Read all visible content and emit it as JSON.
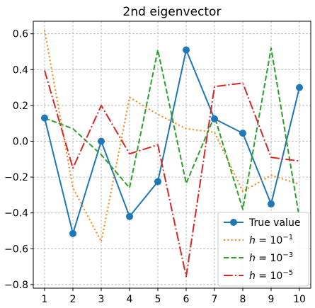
{
  "chart_data": {
    "type": "line",
    "title": "2nd eigenvector",
    "xlabel": "",
    "ylabel": "",
    "x": [
      1,
      2,
      3,
      4,
      5,
      6,
      7,
      8,
      9,
      10
    ],
    "xlim": [
      0.6,
      10.4
    ],
    "ylim": [
      -0.82,
      0.67
    ],
    "xticks": [
      1,
      2,
      3,
      4,
      5,
      6,
      7,
      8,
      9,
      10
    ],
    "yticks": [
      -0.8,
      -0.6,
      -0.4,
      -0.2,
      0.0,
      0.2,
      0.4,
      0.6
    ],
    "ytick_labels": [
      "−0.8",
      "−0.6",
      "−0.4",
      "−0.2",
      "0.0",
      "0.2",
      "0.4",
      "0.6"
    ],
    "grid": true,
    "legend_position": "bottom-right",
    "series": [
      {
        "name": "True value",
        "color": "#1f77b4",
        "linestyle": "solid",
        "marker": "circle",
        "values": [
          0.13,
          -0.515,
          0.0,
          -0.42,
          -0.225,
          0.51,
          0.125,
          0.045,
          -0.35,
          0.3
        ],
        "legend_math": {
          "base": "True value",
          "sup": ""
        }
      },
      {
        "name": "h = 10^-1",
        "color": "#ff7f0e",
        "linestyle": "dotted",
        "marker": "none",
        "values": [
          0.62,
          -0.26,
          -0.56,
          0.245,
          0.15,
          0.07,
          0.05,
          -0.28,
          -0.19,
          -0.24
        ],
        "legend_math": {
          "base": "h = 10",
          "sup": "−1"
        }
      },
      {
        "name": "h = 10^-3",
        "color": "#2ca02c",
        "linestyle": "dashed",
        "marker": "none",
        "values": [
          0.13,
          0.07,
          -0.075,
          -0.26,
          0.51,
          -0.235,
          0.14,
          -0.38,
          0.52,
          -0.43
        ],
        "legend_math": {
          "base": "h = 10",
          "sup": "−3"
        }
      },
      {
        "name": "h = 10^-5",
        "color": "#d62728",
        "linestyle": "dashdot",
        "marker": "none",
        "values": [
          0.395,
          -0.15,
          0.2,
          -0.07,
          -0.02,
          -0.755,
          0.305,
          0.325,
          -0.09,
          -0.11
        ],
        "legend_math": {
          "base": "h = 10",
          "sup": "−5"
        }
      }
    ]
  }
}
